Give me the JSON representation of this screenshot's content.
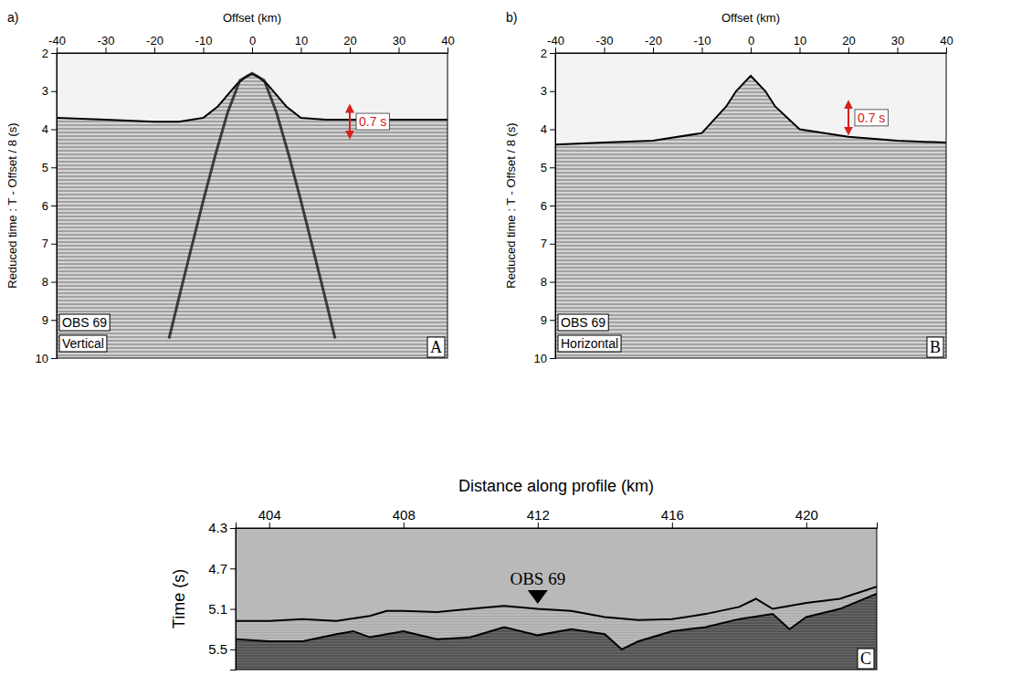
{
  "chart_data": [
    {
      "type": "line",
      "title": "a)",
      "station": "OBS 69",
      "component": "Vertical",
      "letter": "A",
      "x_label": "Offset (km)",
      "y_label": "Reduced time : T - Offset / 8 (s)",
      "xlim": [
        -40,
        40
      ],
      "xticks": [
        -40,
        -30,
        -20,
        -10,
        0,
        10,
        20,
        30,
        40
      ],
      "ylim": [
        10,
        2
      ],
      "yticks": [
        2,
        3,
        4,
        5,
        6,
        7,
        8,
        9,
        10
      ],
      "series": [
        {
          "type": "area",
          "color": "#000000",
          "x": [
            -40,
            -30,
            -20,
            -15,
            -10,
            -7,
            -5,
            -3,
            -1,
            0,
            1,
            3,
            5,
            7,
            10,
            15,
            20,
            30,
            40
          ],
          "values": [
            3.7,
            3.75,
            3.8,
            3.8,
            3.7,
            3.4,
            3.1,
            2.8,
            2.6,
            2.55,
            2.6,
            2.8,
            3.1,
            3.4,
            3.7,
            3.75,
            3.75,
            3.75,
            3.75
          ]
        },
        {
          "type": "line",
          "color": "#111111",
          "x": [
            -17,
            -15,
            -12.5,
            -10,
            -7.5,
            -5,
            -2.5,
            0,
            2.5,
            5,
            7.5,
            10,
            12.5,
            15,
            17
          ],
          "values": [
            9.49,
            8.44,
            7.15,
            5.88,
            4.67,
            3.56,
            2.72,
            2.53,
            2.72,
            3.56,
            4.67,
            5.88,
            7.15,
            8.44,
            9.49
          ]
        }
      ],
      "annotations": [
        {
          "text": "0.7 s",
          "x": 20,
          "y": [
            3.45,
            4.15
          ],
          "color": "#d62020"
        }
      ]
    },
    {
      "type": "line",
      "title": "b)",
      "station": "OBS 69",
      "component": "Horizontal",
      "letter": "B",
      "x_label": "Offset (km)",
      "y_label": "Reduced time : T - Offset / 8 (s)",
      "xlim": [
        -40,
        40
      ],
      "xticks": [
        -40,
        -30,
        -20,
        -10,
        0,
        10,
        20,
        30,
        40
      ],
      "ylim": [
        10,
        2
      ],
      "yticks": [
        2,
        3,
        4,
        5,
        6,
        7,
        8,
        9,
        10
      ],
      "series": [
        {
          "type": "area",
          "color": "#000000",
          "x": [
            -40,
            -30,
            -20,
            -10,
            -5,
            -3,
            0,
            3,
            5,
            10,
            20,
            30,
            40
          ],
          "values": [
            4.4,
            4.35,
            4.3,
            4.1,
            3.4,
            3.0,
            2.6,
            3.0,
            3.4,
            4.0,
            4.2,
            4.3,
            4.35
          ]
        }
      ],
      "annotations": [
        {
          "text": "0.7 s",
          "x": 20,
          "y": [
            3.35,
            4.05
          ],
          "color": "#d62020"
        }
      ]
    },
    {
      "type": "line",
      "letter": "C",
      "x_label": "Distance along profile (km)",
      "y_label": "Time (s)",
      "xlim": [
        403.0,
        422.1
      ],
      "xticks": [
        404,
        408,
        412,
        416,
        420
      ],
      "ylim": [
        5.7,
        4.3
      ],
      "yticks": [
        4.3,
        4.7,
        5.1,
        5.5
      ],
      "series": [
        {
          "type": "area",
          "color": "#000000",
          "x": [
            403,
            404,
            405,
            406,
            407,
            407.5,
            408,
            409,
            410,
            411,
            412,
            413,
            414,
            415,
            416,
            417,
            418,
            418.5,
            419,
            420,
            421,
            422.1
          ],
          "values": [
            5.22,
            5.22,
            5.2,
            5.22,
            5.17,
            5.12,
            5.12,
            5.13,
            5.1,
            5.07,
            5.1,
            5.12,
            5.18,
            5.21,
            5.2,
            5.15,
            5.08,
            5.0,
            5.1,
            5.04,
            5.0,
            4.88
          ]
        },
        {
          "type": "area",
          "color": "#000000",
          "x": [
            403,
            404,
            405,
            406,
            406.5,
            407,
            408,
            409,
            410,
            411,
            412,
            413,
            414,
            414.5,
            415,
            416,
            417,
            418,
            419,
            419.5,
            420,
            421,
            422.1
          ],
          "values": [
            5.4,
            5.42,
            5.42,
            5.35,
            5.32,
            5.38,
            5.32,
            5.4,
            5.38,
            5.28,
            5.36,
            5.3,
            5.35,
            5.5,
            5.42,
            5.32,
            5.28,
            5.2,
            5.15,
            5.3,
            5.18,
            5.1,
            4.95
          ]
        }
      ],
      "annotations": [
        {
          "text": "OBS 69",
          "x": 412,
          "y": 5.05
        }
      ]
    }
  ]
}
